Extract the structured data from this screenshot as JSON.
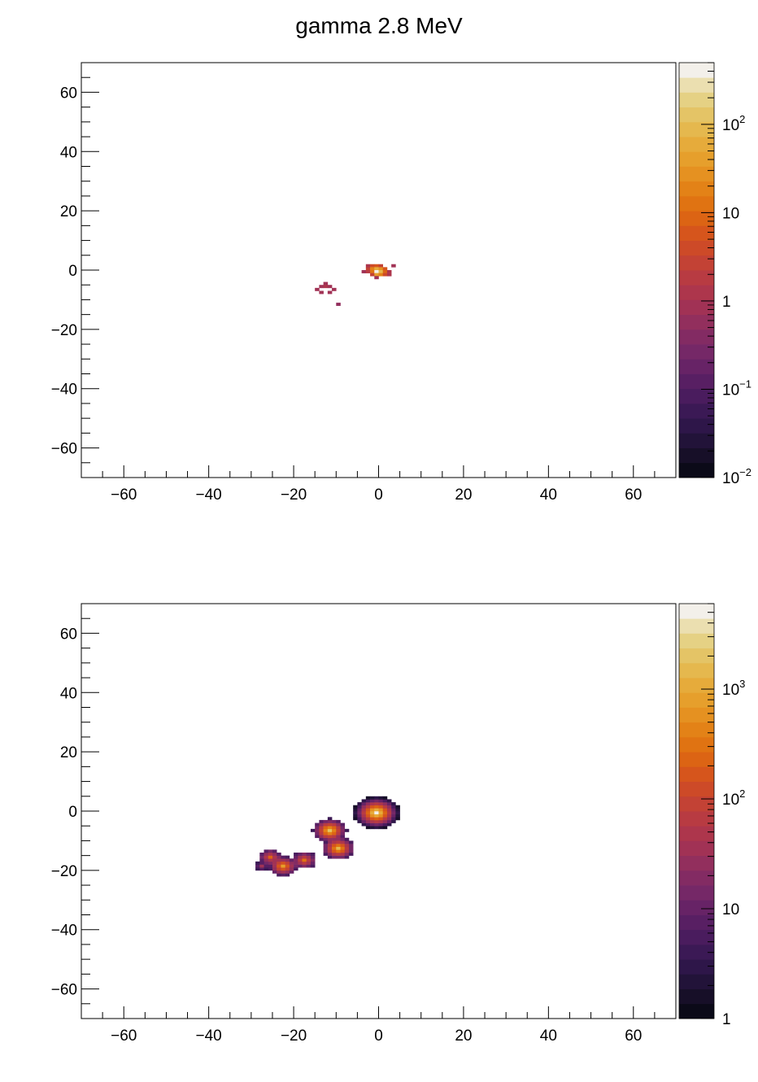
{
  "figure_title": "gamma 2.8 MeV",
  "palette": [
    "#0b0a18",
    "#170f28",
    "#221339",
    "#2e1649",
    "#3b1955",
    "#4a1c5e",
    "#581f63",
    "#672366",
    "#752867",
    "#832b63",
    "#922f5d",
    "#a13255",
    "#ad364c",
    "#b83b42",
    "#c34235",
    "#cd4a28",
    "#d6551c",
    "#dc6414",
    "#e07312",
    "#e38217",
    "#e59121",
    "#e69f2c",
    "#e6ab3b",
    "#e5b84e",
    "#e4c466",
    "#e5d184",
    "#ebdfb0",
    "#f3f0ea"
  ],
  "chart_data": [
    {
      "type": "heatmap",
      "name": "top",
      "xlim": [
        -70,
        70
      ],
      "ylim": [
        -70,
        70
      ],
      "x_ticks": [
        "-60",
        "-40",
        "-20",
        "0",
        "20",
        "40",
        "60"
      ],
      "y_ticks": [
        "60",
        "40",
        "20",
        "0",
        "-20",
        "-40",
        "-60"
      ],
      "colorbar": {
        "scale": "log",
        "min": 0.01,
        "max": 500,
        "tick_labels": [
          "10^2",
          "10",
          "1",
          "10^-1",
          "10^-2"
        ]
      },
      "bin_size": 1,
      "cells": [
        [
          -4,
          -1,
          0.9
        ],
        [
          -3,
          -1,
          2.0
        ],
        [
          -3,
          0,
          2.5
        ],
        [
          -3,
          1,
          1.2
        ],
        [
          -2,
          1,
          4
        ],
        [
          -2,
          0,
          20
        ],
        [
          -2,
          -1,
          15
        ],
        [
          -2,
          -2,
          3
        ],
        [
          -1,
          1,
          5
        ],
        [
          -1,
          0,
          60
        ],
        [
          -1,
          -1,
          400
        ],
        [
          -1,
          -2,
          40
        ],
        [
          -1,
          -3,
          1.0
        ],
        [
          0,
          1,
          3
        ],
        [
          0,
          0,
          25
        ],
        [
          0,
          -1,
          80
        ],
        [
          0,
          -2,
          18
        ],
        [
          1,
          0,
          6
        ],
        [
          1,
          -1,
          8
        ],
        [
          1,
          -2,
          4
        ],
        [
          2,
          -1,
          1.5
        ],
        [
          2,
          -2,
          1.2
        ],
        [
          3,
          1,
          0.8
        ],
        [
          -13,
          -5,
          0.9
        ],
        [
          -13,
          -6,
          1.1
        ],
        [
          -14,
          -6,
          0.9
        ],
        [
          -12,
          -6,
          0.9
        ],
        [
          -15,
          -7,
          0.8
        ],
        [
          -11,
          -7,
          0.9
        ],
        [
          -14,
          -8,
          0.8
        ],
        [
          -12,
          -8,
          1.0
        ],
        [
          -10,
          -12,
          0.7
        ]
      ]
    },
    {
      "type": "heatmap",
      "name": "bottom",
      "xlim": [
        -70,
        70
      ],
      "ylim": [
        -70,
        70
      ],
      "x_ticks": [
        "-60",
        "-40",
        "-20",
        "0",
        "20",
        "40",
        "60"
      ],
      "y_ticks": [
        "60",
        "40",
        "20",
        "0",
        "-20",
        "-40",
        "-60"
      ],
      "colorbar": {
        "scale": "log",
        "min": 1,
        "max": 6000,
        "tick_labels": [
          "10^3",
          "10^2",
          "10",
          "1"
        ]
      },
      "bin_size": 1,
      "clusters": [
        {
          "x": -1,
          "y": -1,
          "r": 4.6,
          "peak": 5500
        },
        {
          "x": -12,
          "y": -7,
          "r": 3.4,
          "peak": 1800
        },
        {
          "x": -10,
          "y": -13,
          "r": 3.2,
          "peak": 1500
        },
        {
          "x": -23,
          "y": -19,
          "r": 3.0,
          "peak": 700
        },
        {
          "x": -26,
          "y": -16,
          "r": 2.2,
          "peak": 250
        },
        {
          "x": -18,
          "y": -17,
          "r": 2.4,
          "peak": 350
        },
        {
          "x": -28,
          "y": -19,
          "r": 1.6,
          "peak": 40
        }
      ]
    }
  ]
}
